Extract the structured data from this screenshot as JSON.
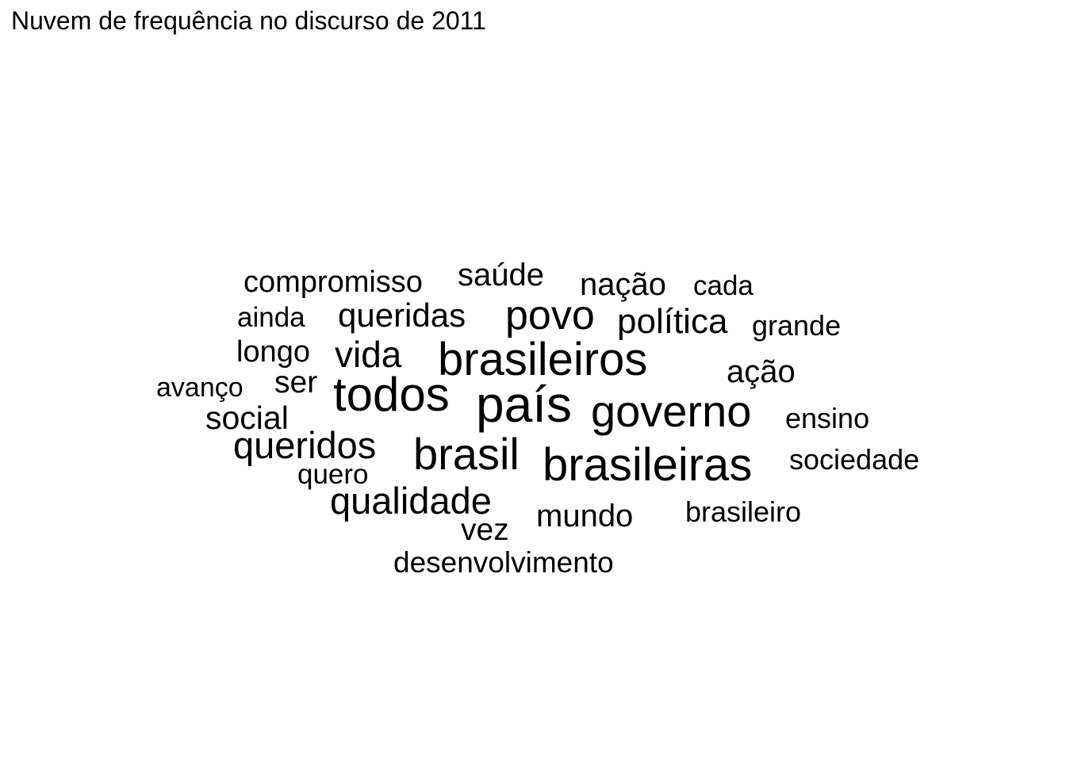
{
  "chart_data": {
    "type": "wordcloud",
    "title": "Nuvem de frequência no discurso de 2011",
    "color": "#000000",
    "words": [
      {
        "text": "país",
        "weight": 10
      },
      {
        "text": "todos",
        "weight": 9
      },
      {
        "text": "brasileiros",
        "weight": 9
      },
      {
        "text": "brasileiras",
        "weight": 9
      },
      {
        "text": "governo",
        "weight": 8
      },
      {
        "text": "brasil",
        "weight": 8
      },
      {
        "text": "queridos",
        "weight": 7
      },
      {
        "text": "qualidade",
        "weight": 7
      },
      {
        "text": "vida",
        "weight": 7
      },
      {
        "text": "povo",
        "weight": 7
      },
      {
        "text": "queridas",
        "weight": 6
      },
      {
        "text": "política",
        "weight": 6
      },
      {
        "text": "social",
        "weight": 5
      },
      {
        "text": "mundo",
        "weight": 5
      },
      {
        "text": "vez",
        "weight": 5
      },
      {
        "text": "ação",
        "weight": 5
      },
      {
        "text": "longo",
        "weight": 5
      },
      {
        "text": "nação",
        "weight": 5
      },
      {
        "text": "ser",
        "weight": 5
      },
      {
        "text": "saúde",
        "weight": 5
      },
      {
        "text": "compromisso",
        "weight": 4
      },
      {
        "text": "desenvolvimento",
        "weight": 4
      },
      {
        "text": "brasileiro",
        "weight": 4
      },
      {
        "text": "sociedade",
        "weight": 4
      },
      {
        "text": "grande",
        "weight": 4
      },
      {
        "text": "ensino",
        "weight": 4
      },
      {
        "text": "ainda",
        "weight": 3
      },
      {
        "text": "avanço",
        "weight": 3
      },
      {
        "text": "quero",
        "weight": 3
      },
      {
        "text": "cada",
        "weight": 3
      }
    ]
  }
}
